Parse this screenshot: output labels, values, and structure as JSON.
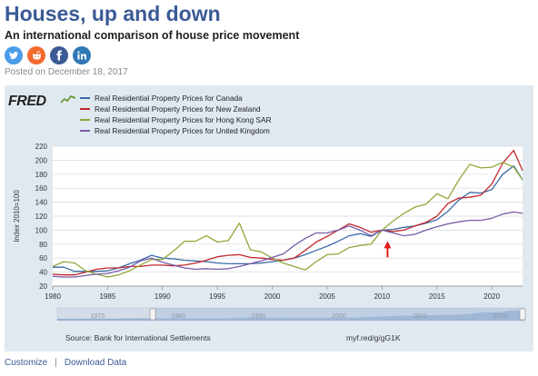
{
  "article": {
    "title": "Houses, up and down",
    "subtitle": "An international comparison of house price movement",
    "posted": "Posted on December 18, 2017"
  },
  "share": [
    {
      "name": "twitter",
      "color": "#4a9ce8"
    },
    {
      "name": "reddit",
      "color": "#f26a2e"
    },
    {
      "name": "facebook",
      "color": "#3b5a96"
    },
    {
      "name": "linkedin",
      "color": "#2f77b5"
    }
  ],
  "fred": {
    "logo": "FRED",
    "source": "Source: Bank for International Settlements",
    "short_url": "myf.red/g/gG1K",
    "navigator_ticks": [
      "1970",
      "1980",
      "1990",
      "2000",
      "2010",
      "2020"
    ]
  },
  "footer": {
    "customize": "Customize",
    "download": "Download Data"
  },
  "chart_data": {
    "type": "line",
    "ylabel": "Index 2010=100",
    "xlabel": "",
    "xlim": [
      1980,
      2022.8
    ],
    "ylim": [
      20,
      220
    ],
    "x_ticks": [
      1980,
      1985,
      1990,
      1995,
      2000,
      2005,
      2010,
      2015,
      2020
    ],
    "y_ticks": [
      20,
      40,
      60,
      80,
      100,
      120,
      140,
      160,
      180,
      200,
      220
    ],
    "grid": true,
    "legend_position": "top-left",
    "annotations": [
      {
        "type": "arrow",
        "x": 2010.5,
        "y": 100,
        "direction": "up",
        "color": "#e01b1b"
      }
    ],
    "series": [
      {
        "name": "Real Residential Property Prices for Canada",
        "color": "#3b6aa5",
        "points": [
          [
            1980,
            47
          ],
          [
            1981,
            47
          ],
          [
            1982,
            41
          ],
          [
            1983,
            41
          ],
          [
            1984,
            41
          ],
          [
            1985,
            42
          ],
          [
            1986,
            46
          ],
          [
            1987,
            52
          ],
          [
            1988,
            57
          ],
          [
            1989,
            64
          ],
          [
            1990,
            60
          ],
          [
            1991,
            59
          ],
          [
            1992,
            57
          ],
          [
            1993,
            56
          ],
          [
            1994,
            55
          ],
          [
            1995,
            53
          ],
          [
            1996,
            52
          ],
          [
            1997,
            52
          ],
          [
            1998,
            52
          ],
          [
            1999,
            53
          ],
          [
            2000,
            55
          ],
          [
            2001,
            57
          ],
          [
            2002,
            60
          ],
          [
            2003,
            65
          ],
          [
            2004,
            71
          ],
          [
            2005,
            77
          ],
          [
            2006,
            84
          ],
          [
            2007,
            92
          ],
          [
            2008,
            95
          ],
          [
            2009,
            91
          ],
          [
            2010,
            100
          ],
          [
            2011,
            101
          ],
          [
            2012,
            104
          ],
          [
            2013,
            106
          ],
          [
            2014,
            110
          ],
          [
            2015,
            115
          ],
          [
            2016,
            127
          ],
          [
            2017,
            143
          ],
          [
            2018,
            154
          ],
          [
            2019,
            153
          ],
          [
            2020,
            158
          ],
          [
            2021,
            180
          ],
          [
            2022,
            192
          ],
          [
            2022.8,
            172
          ]
        ]
      },
      {
        "name": "Real Residential Property Prices for New Zealand",
        "color": "#c0272d",
        "points": [
          [
            1980,
            37
          ],
          [
            1981,
            36
          ],
          [
            1982,
            36
          ],
          [
            1983,
            40
          ],
          [
            1984,
            44
          ],
          [
            1985,
            46
          ],
          [
            1986,
            46
          ],
          [
            1987,
            48
          ],
          [
            1988,
            48
          ],
          [
            1989,
            50
          ],
          [
            1990,
            50
          ],
          [
            1991,
            49
          ],
          [
            1992,
            50
          ],
          [
            1993,
            53
          ],
          [
            1994,
            57
          ],
          [
            1995,
            62
          ],
          [
            1996,
            64
          ],
          [
            1997,
            65
          ],
          [
            1998,
            61
          ],
          [
            1999,
            60
          ],
          [
            2000,
            58
          ],
          [
            2001,
            57
          ],
          [
            2002,
            60
          ],
          [
            2003,
            71
          ],
          [
            2004,
            83
          ],
          [
            2005,
            91
          ],
          [
            2006,
            100
          ],
          [
            2007,
            109
          ],
          [
            2008,
            104
          ],
          [
            2009,
            97
          ],
          [
            2010,
            100
          ],
          [
            2011,
            98
          ],
          [
            2012,
            100
          ],
          [
            2013,
            106
          ],
          [
            2014,
            111
          ],
          [
            2015,
            120
          ],
          [
            2016,
            138
          ],
          [
            2017,
            146
          ],
          [
            2018,
            147
          ],
          [
            2019,
            150
          ],
          [
            2020,
            166
          ],
          [
            2021,
            196
          ],
          [
            2022,
            214
          ],
          [
            2022.8,
            185
          ]
        ]
      },
      {
        "name": "Real Residential Property Prices for Hong Kong SAR",
        "color": "#8fa83a",
        "points": [
          [
            1980,
            48
          ],
          [
            1981,
            55
          ],
          [
            1982,
            53
          ],
          [
            1983,
            42
          ],
          [
            1984,
            37
          ],
          [
            1985,
            33
          ],
          [
            1986,
            36
          ],
          [
            1987,
            42
          ],
          [
            1988,
            50
          ],
          [
            1989,
            58
          ],
          [
            1990,
            58
          ],
          [
            1991,
            70
          ],
          [
            1992,
            84
          ],
          [
            1993,
            84
          ],
          [
            1994,
            92
          ],
          [
            1995,
            83
          ],
          [
            1996,
            85
          ],
          [
            1997,
            110
          ],
          [
            1998,
            72
          ],
          [
            1999,
            69
          ],
          [
            2000,
            60
          ],
          [
            2001,
            53
          ],
          [
            2002,
            48
          ],
          [
            2003,
            43
          ],
          [
            2004,
            55
          ],
          [
            2005,
            65
          ],
          [
            2006,
            66
          ],
          [
            2007,
            75
          ],
          [
            2008,
            78
          ],
          [
            2009,
            80
          ],
          [
            2010,
            100
          ],
          [
            2011,
            113
          ],
          [
            2012,
            124
          ],
          [
            2013,
            133
          ],
          [
            2014,
            137
          ],
          [
            2015,
            152
          ],
          [
            2016,
            145
          ],
          [
            2017,
            172
          ],
          [
            2018,
            194
          ],
          [
            2019,
            189
          ],
          [
            2020,
            190
          ],
          [
            2021,
            197
          ],
          [
            2022,
            190
          ],
          [
            2022.8,
            172
          ]
        ]
      },
      {
        "name": "Real Residential Property Prices for United Kingdom",
        "color": "#7a5ca8",
        "points": [
          [
            1980,
            34
          ],
          [
            1981,
            33
          ],
          [
            1982,
            33
          ],
          [
            1983,
            35
          ],
          [
            1984,
            37
          ],
          [
            1985,
            38
          ],
          [
            1986,
            42
          ],
          [
            1987,
            47
          ],
          [
            1988,
            56
          ],
          [
            1989,
            60
          ],
          [
            1990,
            54
          ],
          [
            1991,
            50
          ],
          [
            1992,
            46
          ],
          [
            1993,
            44
          ],
          [
            1994,
            45
          ],
          [
            1995,
            44
          ],
          [
            1996,
            45
          ],
          [
            1997,
            48
          ],
          [
            1998,
            52
          ],
          [
            1999,
            56
          ],
          [
            2000,
            61
          ],
          [
            2001,
            66
          ],
          [
            2002,
            78
          ],
          [
            2003,
            88
          ],
          [
            2004,
            96
          ],
          [
            2005,
            96
          ],
          [
            2006,
            100
          ],
          [
            2007,
            106
          ],
          [
            2008,
            100
          ],
          [
            2009,
            92
          ],
          [
            2010,
            100
          ],
          [
            2011,
            96
          ],
          [
            2012,
            92
          ],
          [
            2013,
            94
          ],
          [
            2014,
            100
          ],
          [
            2015,
            105
          ],
          [
            2016,
            109
          ],
          [
            2017,
            112
          ],
          [
            2018,
            114
          ],
          [
            2019,
            114
          ],
          [
            2020,
            117
          ],
          [
            2021,
            123
          ],
          [
            2022,
            126
          ],
          [
            2022.8,
            124
          ]
        ]
      }
    ]
  }
}
